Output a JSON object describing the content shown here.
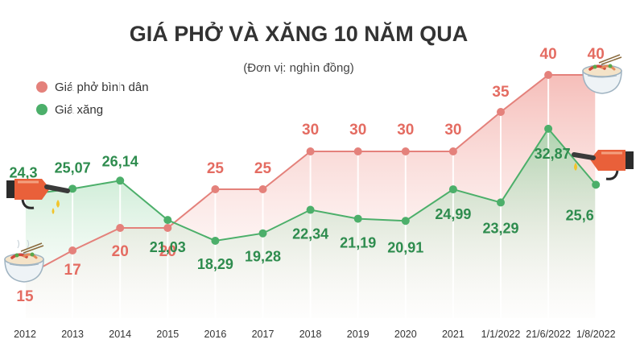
{
  "title": "GIÁ PHỞ VÀ XĂNG 10 NĂM QUA",
  "subtitle": "(Đơn vị: nghìn đồng)",
  "colors": {
    "pho": "#e4817b",
    "pho_label": "#e46c62",
    "gas": "#4caf6a",
    "gas_label": "#2e8c4e",
    "title": "#333333"
  },
  "icons": [
    "pho-bowl-icon",
    "fuel-nozzle-icon"
  ],
  "chart_data": {
    "type": "line",
    "categories": [
      "2012",
      "2013",
      "2014",
      "2015",
      "2016",
      "2017",
      "2018",
      "2019",
      "2020",
      "2021",
      "1/1/2022",
      "21/6/2022",
      "1/8/2022"
    ],
    "series": [
      {
        "name": "Giá phở bình dân",
        "values": [
          15,
          17,
          20,
          20,
          25,
          25,
          30,
          30,
          30,
          30,
          35,
          40,
          40
        ],
        "labels": [
          "15",
          "17",
          "20",
          "20",
          "25",
          "25",
          "30",
          "30",
          "30",
          "30",
          "35",
          "40",
          "40"
        ]
      },
      {
        "name": "Giá xăng",
        "values": [
          24.3,
          25.07,
          26.14,
          21.03,
          18.29,
          19.28,
          22.34,
          21.19,
          20.91,
          24.99,
          23.29,
          32.87,
          25.6
        ],
        "labels": [
          "24,3",
          "25,07",
          "26,14",
          "21,03",
          "18,29",
          "19,28",
          "22,34",
          "21,19",
          "20,91",
          "24,99",
          "23,29",
          "32,87",
          "25,6"
        ]
      }
    ],
    "legend": "top-left",
    "grid": "vertical"
  }
}
